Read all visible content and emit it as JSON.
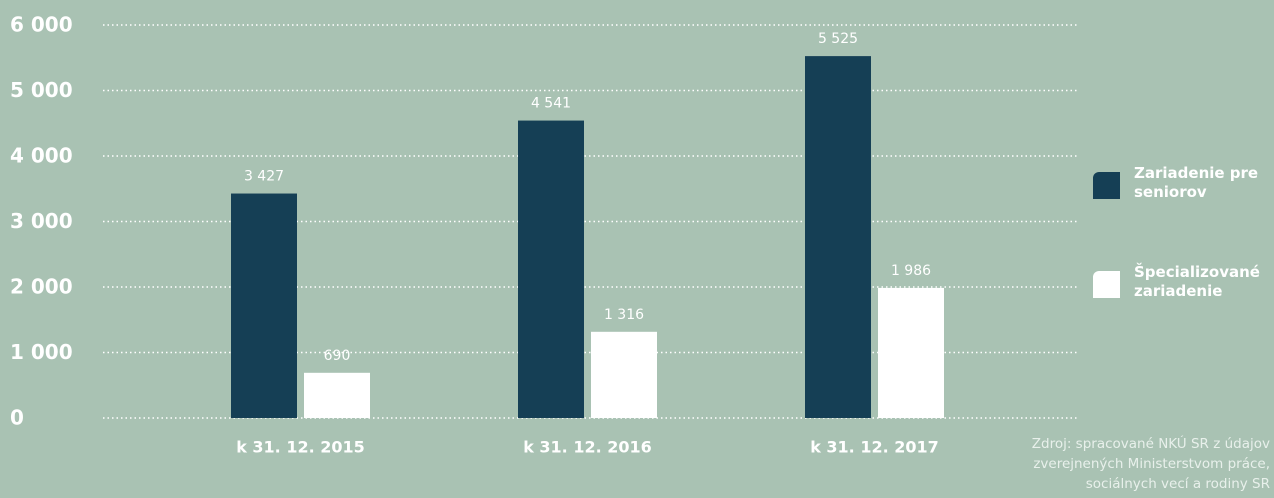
{
  "chart_data": {
    "type": "bar",
    "categories": [
      "k 31. 12. 2015",
      "k 31. 12. 2016",
      "k 31. 12. 2017"
    ],
    "series": [
      {
        "name": "Zariadenie pre seniorov",
        "color": "#153f55",
        "values": [
          3427,
          4541,
          5525
        ],
        "value_labels": [
          "3 427",
          "4 541",
          "5 525"
        ]
      },
      {
        "name": "Špecializované zariadenie",
        "color": "#ffffff",
        "values": [
          690,
          1316,
          1986
        ],
        "value_labels": [
          "690",
          "1 316",
          "1 986"
        ]
      }
    ],
    "ylim": [
      0,
      6000
    ],
    "yticks": [
      0,
      {
        "value": 1000,
        "label": "1 000"
      },
      {
        "value": 2000,
        "label": "2 000"
      },
      {
        "value": 3000,
        "label": "3 000"
      },
      {
        "value": 4000,
        "label": "4 000"
      },
      {
        "value": 5000,
        "label": "5 000"
      },
      {
        "value": 6000,
        "label": "6 000"
      }
    ],
    "grid": true,
    "legend": "right",
    "source": "Zdroj: spracované NKÚ SR z údajov zverejnených Ministerstvom práce, sociálnych vecí a rodiny SR"
  }
}
